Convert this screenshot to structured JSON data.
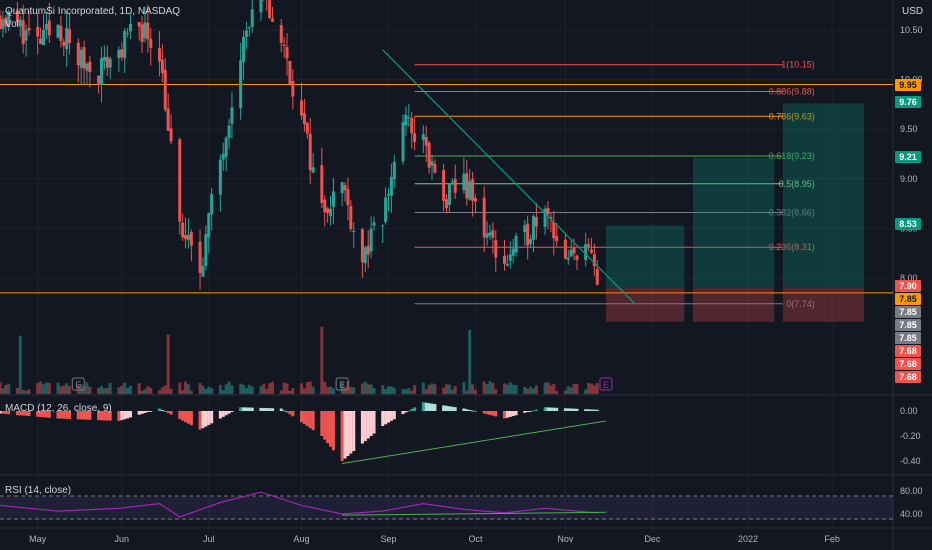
{
  "header": {
    "title": "QuantumSi Incorporated, 1D, NASDAQ",
    "volume_label": "Vol",
    "currency": "USD"
  },
  "colors": {
    "background": "#131722",
    "grid": "#1e222d",
    "up": "#26a69a",
    "down": "#ef5350",
    "orange": "#ff9800",
    "trend": "#089981",
    "purple": "#9c27b0",
    "rsi_band": "#2a1f3d"
  },
  "price_axis": {
    "ticks": [
      "10.50",
      "10.00",
      "9.50",
      "9.00",
      "8.50",
      "8.00"
    ],
    "tick_values": [
      10.5,
      10.0,
      9.5,
      9.0,
      8.5,
      8.0
    ],
    "ylim": [
      7.72,
      10.78
    ]
  },
  "time_axis": {
    "labels": [
      "May",
      "Jun",
      "Jul",
      "Aug",
      "Sep",
      "Oct",
      "Nov",
      "Dec",
      "2022",
      "Feb"
    ]
  },
  "badges": [
    {
      "text": "9.95",
      "color": "#ff9800",
      "text_color": "#131722"
    },
    {
      "text": "9.76",
      "color": "#089981",
      "text_color": "#ffffff"
    },
    {
      "text": "9.21",
      "color": "#089981",
      "text_color": "#ffffff"
    },
    {
      "text": "8.53",
      "color": "#089981",
      "text_color": "#ffffff"
    },
    {
      "text": "7.90",
      "color": "#ef5350",
      "text_color": "#ffffff"
    },
    {
      "text": "7.85",
      "color": "#ff9800",
      "text_color": "#131722"
    },
    {
      "text": "7.85",
      "color": "#787b86",
      "text_color": "#ffffff"
    },
    {
      "text": "7.85",
      "color": "#787b86",
      "text_color": "#ffffff"
    },
    {
      "text": "7.85",
      "color": "#787b86",
      "text_color": "#ffffff"
    },
    {
      "text": "7.68",
      "color": "#ef5350",
      "text_color": "#ffffff"
    },
    {
      "text": "7.68",
      "color": "#ef5350",
      "text_color": "#ffffff"
    },
    {
      "text": "7.68",
      "color": "#ef5350",
      "text_color": "#ffffff"
    }
  ],
  "fib_levels": [
    {
      "label": "1(10.15)",
      "value": 10.15,
      "color": "#ef5350"
    },
    {
      "label": "0.886(9.88)",
      "value": 9.88,
      "color": "#ef5350"
    },
    {
      "label": "0.786(9.63)",
      "value": 9.63,
      "color": "#ff9800"
    },
    {
      "label": "0.618(9.23)",
      "value": 9.23,
      "color": "#4caf50"
    },
    {
      "label": "0.5(8.95)",
      "value": 8.95,
      "color": "#81c784"
    },
    {
      "label": "0.382(8.66)",
      "value": 8.66,
      "color": "#787b86"
    },
    {
      "label": "0.236(8.31)",
      "value": 8.31,
      "color": "#ef5350"
    },
    {
      "label": "0(7.74)",
      "value": 7.74,
      "color": "#787b86"
    }
  ],
  "horizontal_lines": [
    {
      "value": 9.95,
      "color": "#ff9800"
    },
    {
      "value": 7.85,
      "color": "#ff9800"
    }
  ],
  "earnings_markers": [
    "E",
    "E",
    "E"
  ],
  "macd": {
    "label": "MACD (12, 26, close, 9)",
    "ticks": [
      "0.00",
      "-0.20",
      "-0.40"
    ],
    "tick_values": [
      0.0,
      -0.2,
      -0.4
    ],
    "ylim": [
      -0.48,
      0.12
    ]
  },
  "rsi": {
    "label": "RSI (14, close)",
    "ticks": [
      "80.00",
      "40.00"
    ],
    "tick_values": [
      80,
      40
    ],
    "ylim": [
      20,
      95
    ],
    "band": [
      30,
      70
    ]
  },
  "chart_data": {
    "type": "candlestick",
    "title": "QuantumSi Incorporated, 1D, NASDAQ",
    "xlabel": "",
    "ylabel": "",
    "ylim": [
      7.72,
      10.78
    ],
    "x_range": [
      "2021-04-20",
      "2022-02-22"
    ],
    "month_ticks": [
      {
        "label": "May",
        "date": "2021-05-03"
      },
      {
        "label": "Jun",
        "date": "2021-06-01"
      },
      {
        "label": "Jul",
        "date": "2021-07-01"
      },
      {
        "label": "Aug",
        "date": "2021-08-02"
      },
      {
        "label": "Sep",
        "date": "2021-09-01"
      },
      {
        "label": "Oct",
        "date": "2021-10-01"
      },
      {
        "label": "Nov",
        "date": "2021-11-01"
      },
      {
        "label": "Dec",
        "date": "2021-12-01"
      },
      {
        "label": "2022",
        "date": "2022-01-03"
      },
      {
        "label": "Feb",
        "date": "2022-02-01"
      }
    ],
    "price_path": [
      [
        "2021-04-20",
        10.65
      ],
      [
        "2021-04-26",
        10.55
      ],
      [
        "2021-05-03",
        10.35
      ],
      [
        "2021-05-10",
        10.55
      ],
      [
        "2021-05-17",
        10.2
      ],
      [
        "2021-05-24",
        10.1
      ],
      [
        "2021-05-31",
        10.3
      ],
      [
        "2021-06-07",
        10.55
      ],
      [
        "2021-06-14",
        10.3
      ],
      [
        "2021-06-21",
        8.5
      ],
      [
        "2021-06-28",
        8.1
      ],
      [
        "2021-07-05",
        9.2
      ],
      [
        "2021-07-12",
        10.3
      ],
      [
        "2021-07-19",
        10.9
      ],
      [
        "2021-07-26",
        10.4
      ],
      [
        "2021-08-02",
        9.6
      ],
      [
        "2021-08-09",
        8.7
      ],
      [
        "2021-08-16",
        8.95
      ],
      [
        "2021-08-23",
        8.2
      ],
      [
        "2021-08-30",
        8.6
      ],
      [
        "2021-09-06",
        9.6
      ],
      [
        "2021-09-13",
        9.35
      ],
      [
        "2021-09-20",
        8.75
      ],
      [
        "2021-09-27",
        9.0
      ],
      [
        "2021-10-04",
        8.5
      ],
      [
        "2021-10-11",
        8.15
      ],
      [
        "2021-10-18",
        8.4
      ],
      [
        "2021-10-25",
        8.8
      ],
      [
        "2021-11-01",
        8.1
      ],
      [
        "2021-11-08",
        8.4
      ],
      [
        "2021-11-12",
        7.9
      ]
    ],
    "trendline": [
      [
        "2021-08-30",
        10.3
      ],
      [
        "2021-11-25",
        7.74
      ]
    ],
    "position_boxes": [
      {
        "start": "2021-11-15",
        "end": "2021-12-12",
        "target": 8.53,
        "stop": 7.74,
        "entry": 7.9
      },
      {
        "start": "2021-12-15",
        "end": "2022-01-12",
        "target": 9.21,
        "stop": 7.74,
        "entry": 7.9
      },
      {
        "start": "2022-01-15",
        "end": "2022-02-12",
        "target": 9.76,
        "stop": 7.74,
        "entry": 7.9
      }
    ],
    "macd_path": [
      [
        "2021-04-20",
        -0.02
      ],
      [
        "2021-05-10",
        -0.06
      ],
      [
        "2021-05-31",
        -0.08
      ],
      [
        "2021-06-14",
        0.02
      ],
      [
        "2021-06-28",
        -0.15
      ],
      [
        "2021-07-12",
        0.03
      ],
      [
        "2021-07-26",
        0.02
      ],
      [
        "2021-08-09",
        -0.2
      ],
      [
        "2021-08-16",
        -0.4
      ],
      [
        "2021-08-30",
        -0.12
      ],
      [
        "2021-09-13",
        0.07
      ],
      [
        "2021-09-27",
        0.02
      ],
      [
        "2021-10-11",
        -0.06
      ],
      [
        "2021-10-25",
        0.03
      ],
      [
        "2021-11-12",
        0.01
      ]
    ],
    "macd_trend": [
      [
        "2021-08-16",
        -0.42
      ],
      [
        "2021-11-15",
        -0.08
      ]
    ],
    "rsi_path": [
      [
        "2021-04-20",
        55
      ],
      [
        "2021-05-10",
        45
      ],
      [
        "2021-05-31",
        50
      ],
      [
        "2021-06-14",
        58
      ],
      [
        "2021-06-21",
        35
      ],
      [
        "2021-07-05",
        60
      ],
      [
        "2021-07-19",
        78
      ],
      [
        "2021-08-02",
        55
      ],
      [
        "2021-08-16",
        40
      ],
      [
        "2021-08-30",
        45
      ],
      [
        "2021-09-13",
        58
      ],
      [
        "2021-09-27",
        48
      ],
      [
        "2021-10-11",
        42
      ],
      [
        "2021-10-25",
        50
      ],
      [
        "2021-11-12",
        42
      ]
    ],
    "rsi_trend": [
      [
        "2021-08-16",
        38
      ],
      [
        "2021-11-15",
        43
      ]
    ]
  }
}
